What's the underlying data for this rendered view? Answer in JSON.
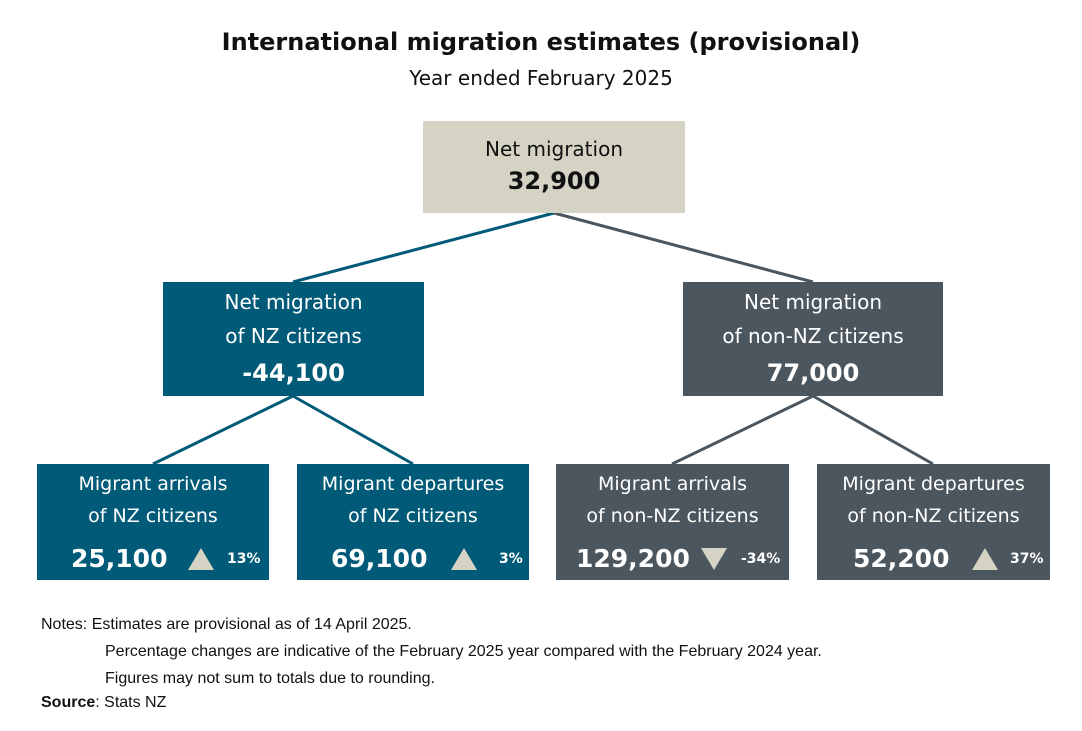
{
  "title": "International migration estimates (provisional)",
  "subtitle": "Year ended February 2025",
  "colors": {
    "root": "#d5d3c4",
    "nz": "#005a78",
    "non_nz": "#4b565e",
    "arrow": "#d5d3c4"
  },
  "root": {
    "label": "Net migration",
    "value": "32,900"
  },
  "nz": {
    "label_line1": "Net migration",
    "label_line2": "of NZ citizens",
    "value": "-44,100"
  },
  "non_nz": {
    "label_line1": "Net migration",
    "label_line2": "of non-NZ citizens",
    "value": "77,000"
  },
  "leaves": [
    {
      "label_line1": "Migrant arrivals",
      "label_line2": "of NZ citizens",
      "value": "25,100",
      "direction": "up",
      "change": "13%"
    },
    {
      "label_line1": "Migrant departures",
      "label_line2": "of NZ citizens",
      "value": "69,100",
      "direction": "up",
      "change": "3%"
    },
    {
      "label_line1": "Migrant arrivals",
      "label_line2": "of non-NZ citizens",
      "value": "129,200",
      "direction": "down",
      "change": "-34%"
    },
    {
      "label_line1": "Migrant departures",
      "label_line2": "of non-NZ citizens",
      "value": "52,200",
      "direction": "up",
      "change": "37%"
    }
  ],
  "notes": {
    "prefix": "Notes:",
    "line1": "Estimates are provisional as of 14 April 2025.",
    "line2": "Percentage changes are indicative of the February 2025 year compared with the February 2024 year.",
    "line3": "Figures may not sum to totals due to rounding."
  },
  "source": {
    "label": "Source",
    "text": ": Stats NZ"
  }
}
